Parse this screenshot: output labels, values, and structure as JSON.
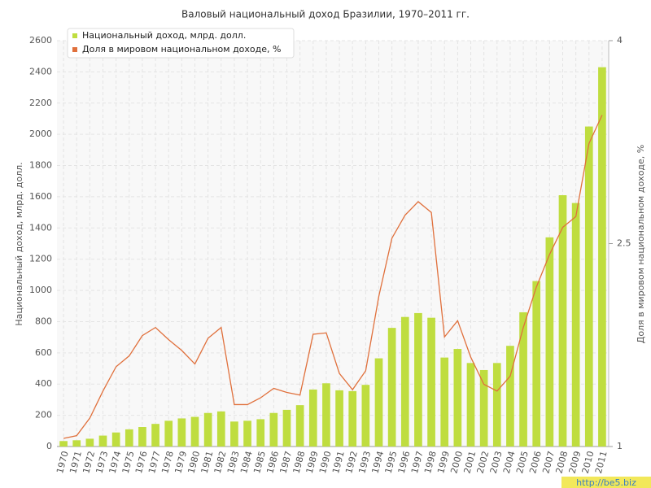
{
  "chart_data": {
    "type": "bar_line",
    "title": "Валовый национальный доход Бразилии, 1970–2011 гг.",
    "y_label": "Национальный доход, млрд. долл.",
    "y2_label": "Доля в мировом национальном доходе, %",
    "watermark": "http://be5.biz",
    "legend": "top-left",
    "grid": true,
    "categories": [
      "1970",
      "1971",
      "1972",
      "1973",
      "1974",
      "1975",
      "1976",
      "1977",
      "1978",
      "1979",
      "1980",
      "1981",
      "1982",
      "1983",
      "1984",
      "1985",
      "1986",
      "1987",
      "1988",
      "1989",
      "1990",
      "1991",
      "1992",
      "1993",
      "1994",
      "1995",
      "1996",
      "1997",
      "1998",
      "1999",
      "2000",
      "2001",
      "2002",
      "2003",
      "2004",
      "2005",
      "2006",
      "2007",
      "2008",
      "2009",
      "2010",
      "2011"
    ],
    "series": [
      {
        "name": "Национальный доход, млрд. долл.",
        "type": "bar",
        "color": "#bfdd3f",
        "values": [
          35,
          40,
          50,
          70,
          90,
          110,
          125,
          145,
          165,
          180,
          190,
          215,
          225,
          160,
          165,
          175,
          215,
          235,
          265,
          365,
          405,
          360,
          355,
          395,
          565,
          760,
          830,
          855,
          825,
          570,
          625,
          535,
          490,
          535,
          645,
          860,
          1060,
          1340,
          1610,
          1560,
          2050,
          2430
        ]
      },
      {
        "name": "Доля в мировом национальном доходе, %",
        "type": "line",
        "axis": "y2",
        "color": "#e0703c",
        "values": [
          1.06,
          1.08,
          1.21,
          1.41,
          1.59,
          1.67,
          1.82,
          1.88,
          1.79,
          1.71,
          1.61,
          1.8,
          1.88,
          1.31,
          1.31,
          1.36,
          1.43,
          1.4,
          1.38,
          1.83,
          1.84,
          1.54,
          1.42,
          1.56,
          2.11,
          2.54,
          2.71,
          2.81,
          2.73,
          1.81,
          1.93,
          1.66,
          1.46,
          1.41,
          1.52,
          1.88,
          2.18,
          2.42,
          2.62,
          2.7,
          3.24,
          3.45
        ]
      }
    ],
    "ylim": [
      0,
      2600
    ],
    "yticks": [
      0,
      200,
      400,
      600,
      800,
      1000,
      1200,
      1400,
      1600,
      1800,
      2000,
      2200,
      2400,
      2600
    ],
    "y2lim": [
      1,
      4
    ],
    "y2ticks": [
      1,
      2.5,
      4
    ]
  }
}
